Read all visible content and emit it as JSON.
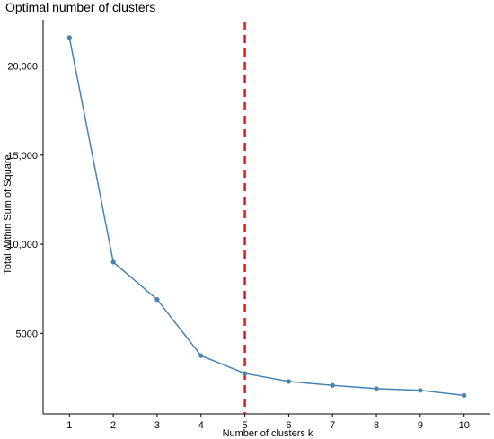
{
  "chart_data": {
    "type": "line",
    "title": "Optimal number of clusters",
    "xlabel": "Number of clusters k",
    "ylabel": "Total Within Sum of Square",
    "x": [
      1,
      2,
      3,
      4,
      5,
      6,
      7,
      8,
      9,
      10
    ],
    "y": [
      21600,
      9000,
      6900,
      3750,
      2750,
      2300,
      2080,
      1900,
      1800,
      1520
    ],
    "xlim": [
      0.4,
      10.6
    ],
    "ylim": [
      480,
      22600
    ],
    "yticks": [
      {
        "value": 5000,
        "label": "5000"
      },
      {
        "value": 10000,
        "label": "10,000"
      },
      {
        "value": 15000,
        "label": "15,000"
      },
      {
        "value": 20000,
        "label": "20,000"
      }
    ],
    "xticks": [
      {
        "value": 1,
        "label": "1"
      },
      {
        "value": 2,
        "label": "2"
      },
      {
        "value": 3,
        "label": "3"
      },
      {
        "value": 4,
        "label": "4"
      },
      {
        "value": 5,
        "label": "5"
      },
      {
        "value": 6,
        "label": "6"
      },
      {
        "value": 7,
        "label": "7"
      },
      {
        "value": 8,
        "label": "8"
      },
      {
        "value": 9,
        "label": "9"
      },
      {
        "value": 10,
        "label": "10"
      }
    ],
    "vline": {
      "x": 5,
      "color": "#e41a1c",
      "style": "dashed"
    },
    "line_color": "#4682b4",
    "grid": false
  }
}
